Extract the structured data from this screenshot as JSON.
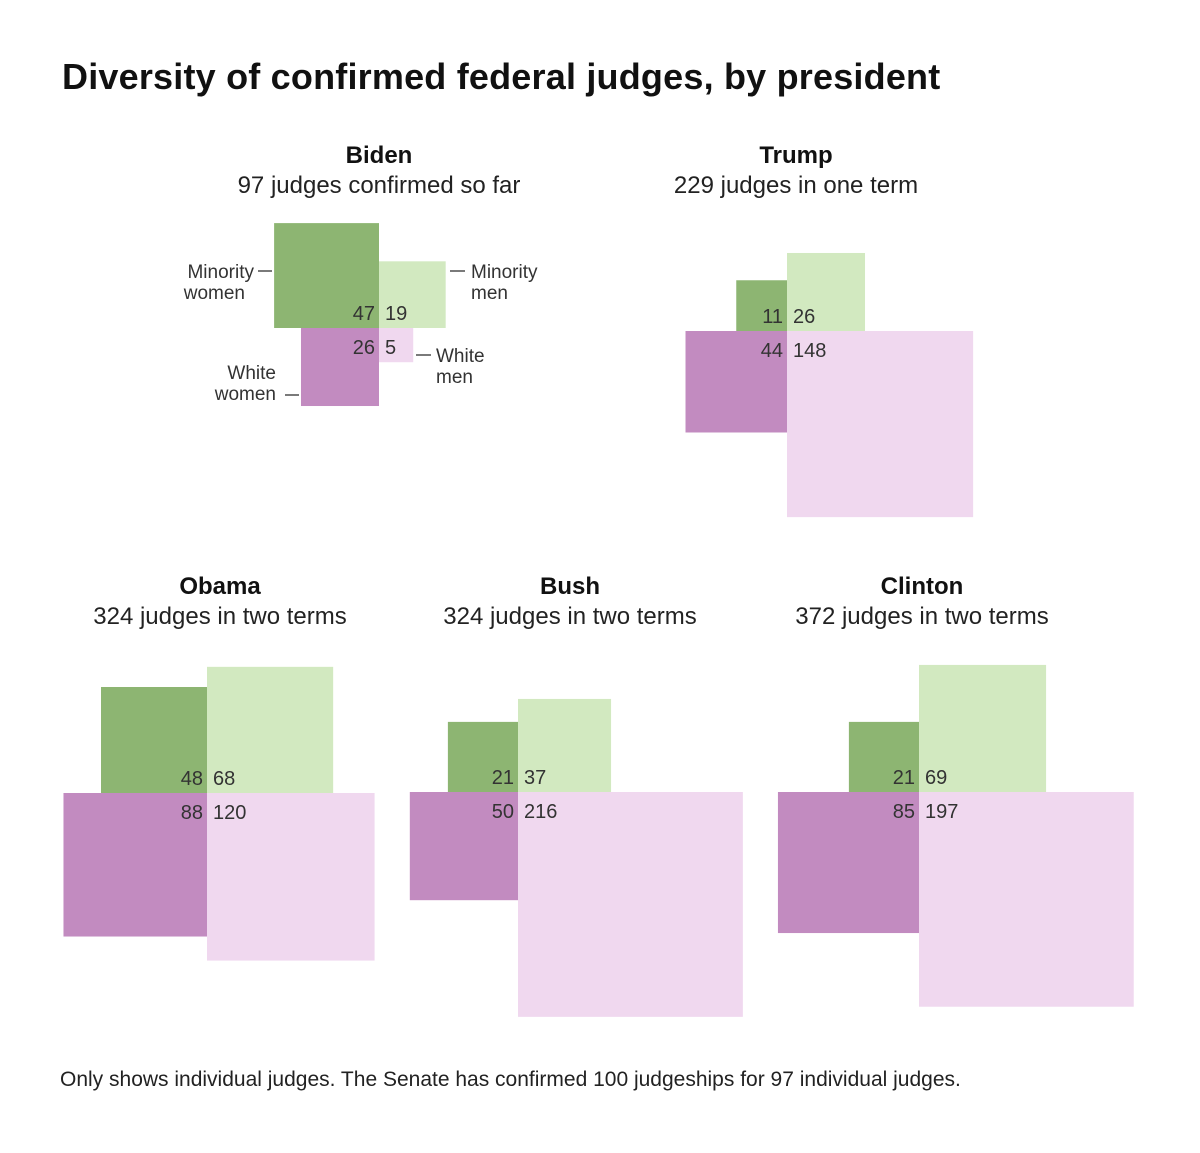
{
  "title": "Diversity of confirmed federal judges, by president",
  "footnote": "Only shows individual judges. The Senate has confirmed 100 judgeships for 97 individual judges.",
  "colors": {
    "minority_women": "#8db572",
    "minority_men": "#d2e9c0",
    "white_women": "#c28bc0",
    "white_men": "#f0d8ef"
  },
  "chart_data": {
    "type": "square-proportional",
    "title": "Diversity of confirmed federal judges, by president",
    "categories": [
      "Minority women",
      "Minority men",
      "White women",
      "White men"
    ],
    "legend_labels": {
      "minority_women": [
        "Minority",
        "women"
      ],
      "minority_men": [
        "Minority",
        "men"
      ],
      "white_women": [
        "White",
        "women"
      ],
      "white_men": [
        "White",
        "men"
      ]
    },
    "presidents": [
      {
        "name": "Biden",
        "subtitle": "97 judges confirmed so far",
        "minority_women": 47,
        "minority_men": 19,
        "white_women": 26,
        "white_men": 5
      },
      {
        "name": "Trump",
        "subtitle": "229 judges in one term",
        "minority_women": 11,
        "minority_men": 26,
        "white_women": 44,
        "white_men": 148
      },
      {
        "name": "Obama",
        "subtitle": "324 judges in two terms",
        "minority_women": 48,
        "minority_men": 68,
        "white_women": 88,
        "white_men": 120
      },
      {
        "name": "Bush",
        "subtitle": "324 judges in two terms",
        "minority_women": 21,
        "minority_men": 37,
        "white_women": 50,
        "white_men": 216
      },
      {
        "name": "Clinton",
        "subtitle": "372 judges in two terms",
        "minority_women": 21,
        "minority_men": 69,
        "white_women": 85,
        "white_men": 197
      }
    ]
  }
}
